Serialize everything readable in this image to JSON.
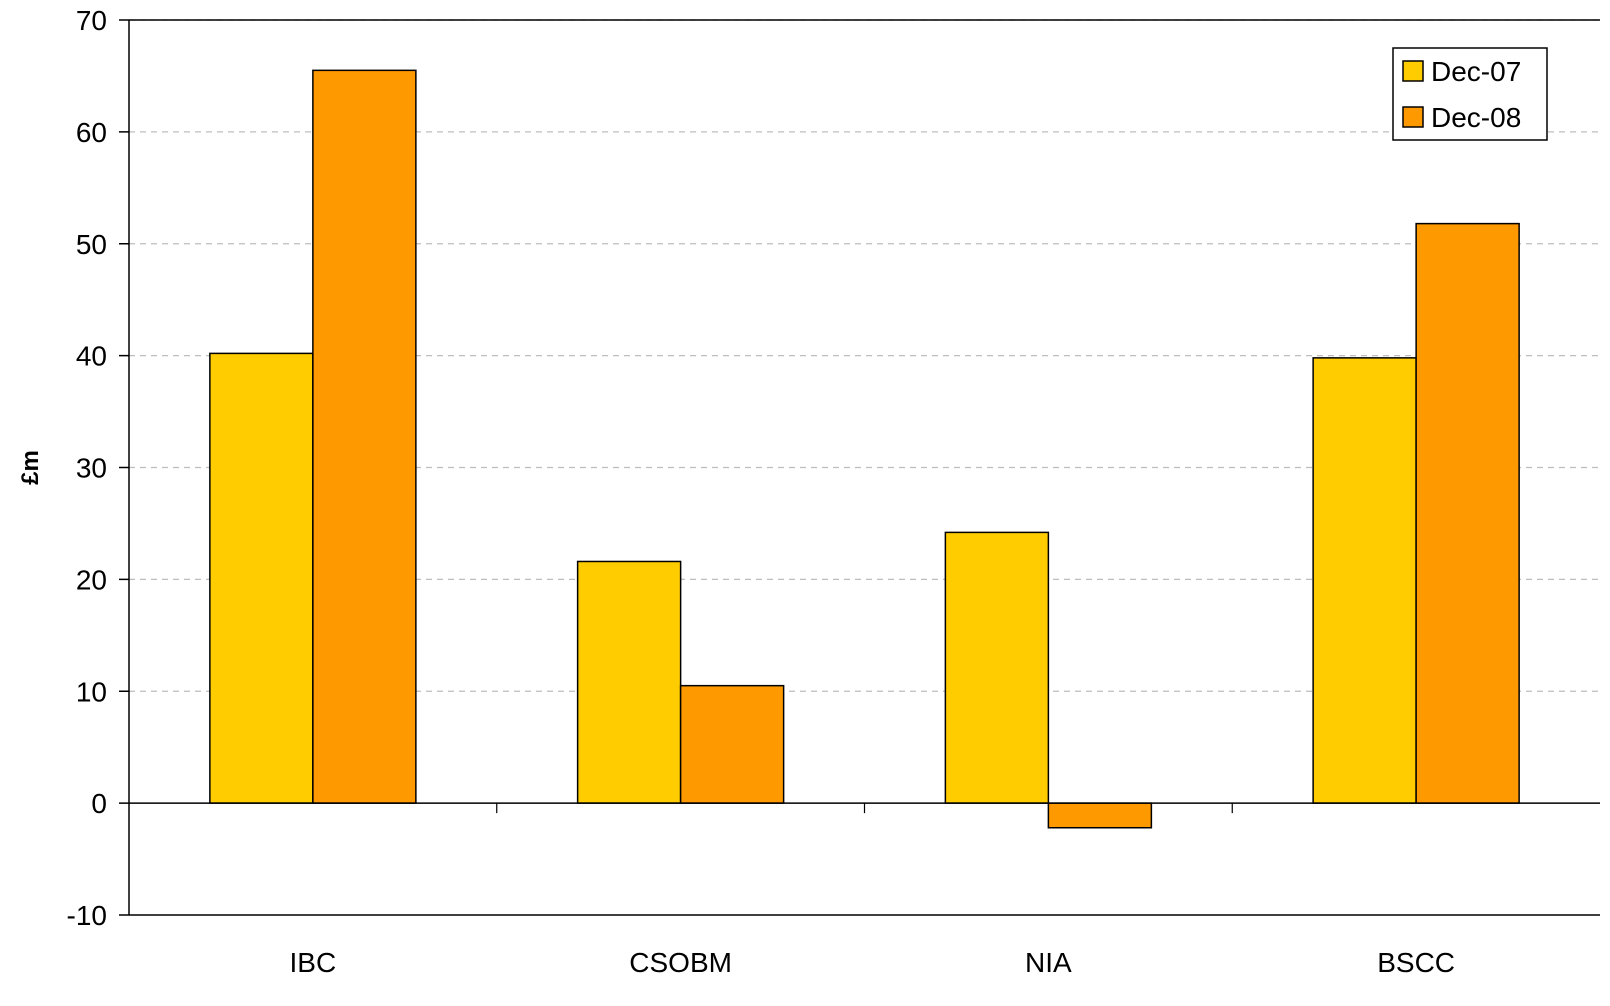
{
  "chart_data": {
    "type": "bar",
    "title": "",
    "xlabel": "",
    "ylabel": "£m",
    "categories": [
      "IBC",
      "CSOBM",
      "NIA",
      "BSCC"
    ],
    "series": [
      {
        "name": "Dec-07",
        "values": [
          40.2,
          21.6,
          24.2,
          39.8
        ],
        "color": "#FFCC00"
      },
      {
        "name": "Dec-08",
        "values": [
          65.5,
          10.5,
          -2.2,
          51.8
        ],
        "color": "#FF9900"
      }
    ],
    "ylim": [
      -10,
      70
    ],
    "yticks": [
      -10,
      0,
      10,
      20,
      30,
      40,
      50,
      60,
      70
    ],
    "grid": true,
    "legend": "top-right"
  }
}
